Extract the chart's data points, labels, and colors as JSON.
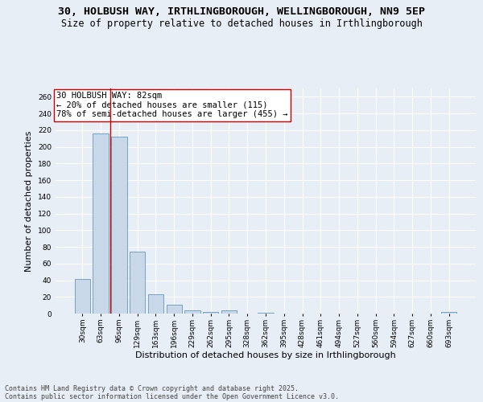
{
  "title_line1": "30, HOLBUSH WAY, IRTHLINGBOROUGH, WELLINGBOROUGH, NN9 5EP",
  "title_line2": "Size of property relative to detached houses in Irthlingborough",
  "xlabel": "Distribution of detached houses by size in Irthlingborough",
  "ylabel": "Number of detached properties",
  "categories": [
    "30sqm",
    "63sqm",
    "96sqm",
    "129sqm",
    "163sqm",
    "196sqm",
    "229sqm",
    "262sqm",
    "295sqm",
    "328sqm",
    "362sqm",
    "395sqm",
    "428sqm",
    "461sqm",
    "494sqm",
    "527sqm",
    "560sqm",
    "594sqm",
    "627sqm",
    "660sqm",
    "693sqm"
  ],
  "values": [
    41,
    216,
    212,
    74,
    23,
    11,
    4,
    2,
    4,
    0,
    1,
    0,
    0,
    0,
    0,
    0,
    0,
    0,
    0,
    0,
    2
  ],
  "bar_color": "#c8d8e8",
  "bar_edge_color": "#6699bb",
  "vline_x": 1.5,
  "vline_color": "#cc0000",
  "annotation_text": "30 HOLBUSH WAY: 82sqm\n← 20% of detached houses are smaller (115)\n78% of semi-detached houses are larger (455) →",
  "annotation_box_color": "#ffffff",
  "annotation_box_edge_color": "#cc0000",
  "ylim": [
    0,
    270
  ],
  "yticks": [
    0,
    20,
    40,
    60,
    80,
    100,
    120,
    140,
    160,
    180,
    200,
    220,
    240,
    260
  ],
  "background_color": "#e8eef5",
  "grid_color": "#ffffff",
  "footer_line1": "Contains HM Land Registry data © Crown copyright and database right 2025.",
  "footer_line2": "Contains public sector information licensed under the Open Government Licence v3.0.",
  "title_fontsize": 9.5,
  "subtitle_fontsize": 8.5,
  "axis_label_fontsize": 8,
  "tick_fontsize": 6.5,
  "annotation_fontsize": 7.5,
  "footer_fontsize": 6
}
